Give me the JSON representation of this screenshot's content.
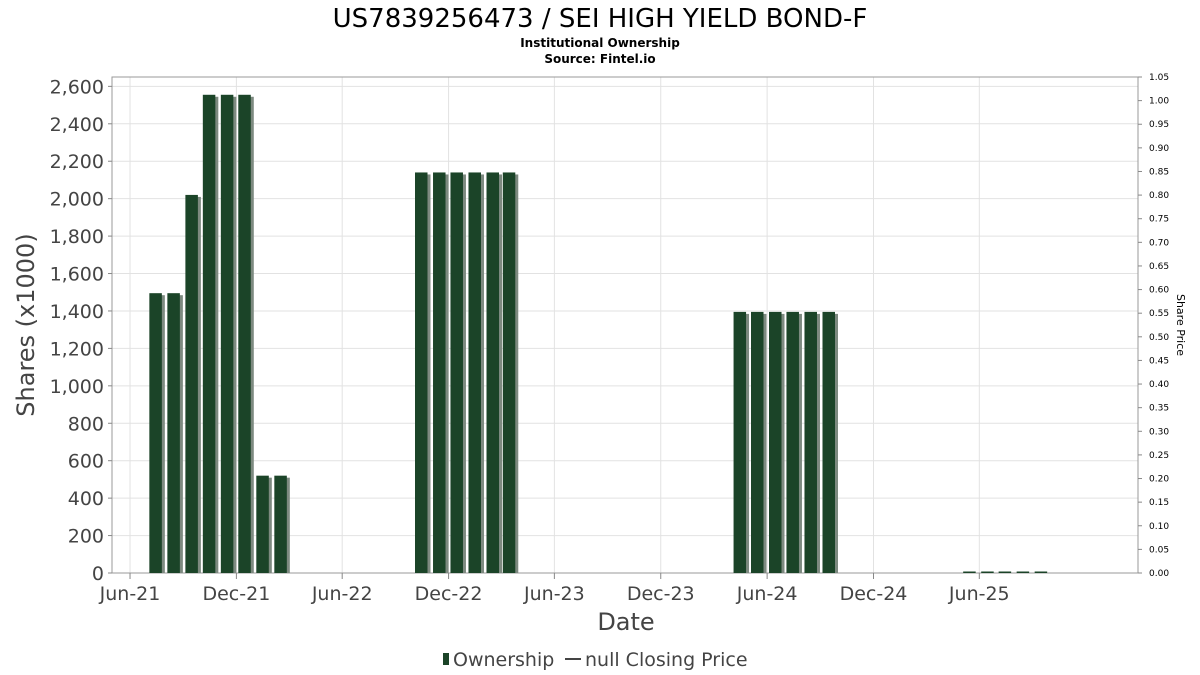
{
  "chart_data": {
    "type": "bar",
    "title": "US7839256473 / SEI HIGH YIELD BOND-F",
    "subtitle_1": "Institutional Ownership",
    "subtitle_2": "Source: Fintel.io",
    "xlabel": "Date",
    "ylabel": "Shares (x1000)",
    "y2label": "Share Price",
    "ylim": [
      0,
      2650
    ],
    "y2lim": [
      0,
      1.05
    ],
    "yticks": [
      0,
      200,
      400,
      600,
      800,
      1000,
      1200,
      1400,
      1600,
      1800,
      2000,
      2200,
      2400,
      2600
    ],
    "yticks_labels": [
      "0",
      "200",
      "400",
      "600",
      "800",
      "1,000",
      "1,200",
      "1,400",
      "1,600",
      "1,800",
      "2,000",
      "2,200",
      "2,400",
      "2,600"
    ],
    "y2ticks": [
      0,
      0.05,
      0.1,
      0.15,
      0.2,
      0.25,
      0.3,
      0.35,
      0.4,
      0.45,
      0.5,
      0.55,
      0.6,
      0.65,
      0.7,
      0.75,
      0.8,
      0.85,
      0.9,
      0.95,
      1.0,
      1.05
    ],
    "y2ticks_labels": [
      "0.00",
      "0.05",
      "0.10",
      "0.15",
      "0.20",
      "0.25",
      "0.30",
      "0.35",
      "0.40",
      "0.45",
      "0.50",
      "0.55",
      "0.60",
      "0.65",
      "0.70",
      "0.75",
      "0.80",
      "0.85",
      "0.90",
      "0.95",
      "1.00",
      "1.05"
    ],
    "xlim": [
      "2021-05-01",
      "2026-03-01"
    ],
    "xticks": [
      "2021-06-01",
      "2021-12-01",
      "2022-06-01",
      "2022-12-01",
      "2023-06-01",
      "2023-12-01",
      "2024-06-01",
      "2024-12-01",
      "2025-06-01"
    ],
    "xticks_labels": [
      "Jun-21",
      "Dec-21",
      "Jun-22",
      "Dec-22",
      "Jun-23",
      "Dec-23",
      "Jun-24",
      "Dec-24",
      "Jun-25"
    ],
    "grid": true,
    "legend_position": "bottom-center",
    "series": [
      {
        "name": "Ownership",
        "color": "#1b4428",
        "shadow_color": "#7d8a80",
        "dates": [
          "2021-07-15",
          "2021-08-15",
          "2021-09-15",
          "2021-10-15",
          "2021-11-15",
          "2021-12-15",
          "2022-01-15",
          "2022-02-15",
          "2022-10-15",
          "2022-11-15",
          "2022-12-15",
          "2023-01-15",
          "2023-02-15",
          "2023-03-15",
          "2024-04-15",
          "2024-05-15",
          "2024-06-15",
          "2024-07-15",
          "2024-08-15",
          "2024-09-15",
          "2025-05-15",
          "2025-06-15",
          "2025-07-15",
          "2025-08-15",
          "2025-09-15"
        ],
        "values": [
          1495,
          1495,
          2020,
          2555,
          2555,
          2555,
          520,
          520,
          2140,
          2140,
          2140,
          2140,
          2140,
          2140,
          1395,
          1395,
          1395,
          1395,
          1395,
          1395,
          8,
          8,
          8,
          8,
          8
        ]
      },
      {
        "name": "null Closing Price",
        "color": "#444444",
        "values": []
      }
    ]
  }
}
